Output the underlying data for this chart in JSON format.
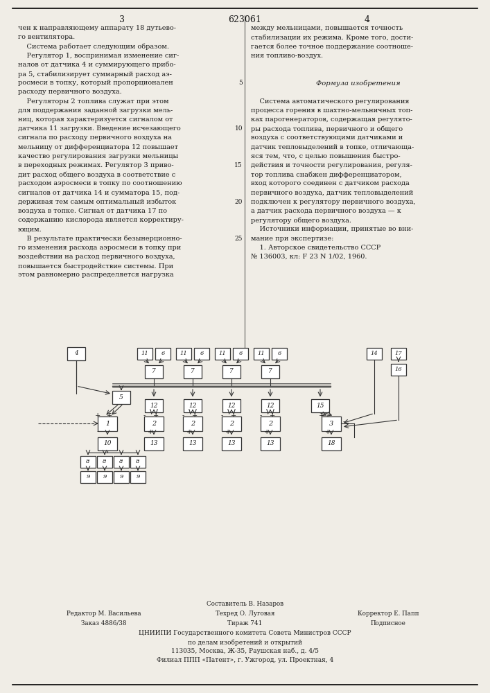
{
  "page_number_center": "623061",
  "page_number_left": "3",
  "page_number_right": "4",
  "bg_color": "#f0ede6",
  "text_color": "#1a1a1a",
  "left_column_text": [
    "чен к направляющему аппарату 18 дутьево-",
    "го вентилятора.",
    "    Система работает следующим образом.",
    "    Регулятор 1, воспринимая изменение сиг-",
    "налов от датчика 4 и суммирующего прибо-",
    "ра 5, стабилизирует суммарный расход аэ-",
    "росмеси в топку, который пропорционален",
    "расходу первичного воздуха.",
    "    Регуляторы 2 топлива служат при этом",
    "для поддержания заданной загрузки мель-",
    "ниц, которая характеризуется сигналом от",
    "датчика 11 загрузки. Введение исчезающего",
    "сигнала по расходу первичного воздуха на",
    "мельницу от дифференциатора 12 повышает",
    "качество регулирования загрузки мельницы",
    "в переходных режимах. Регулятор 3 приво-",
    "дит расход общего воздуха в соответствие с",
    "расходом аэросмеси в топку по соотношению",
    "сигналов от датчика 14 и сумматора 15, под-",
    "держивая тем самым оптимальный избыток",
    "воздуха в топке. Сигнал от датчика 17 по",
    "содержанию кислорода является корректиру-",
    "ющим.",
    "    В результате практически безынерционно-",
    "го изменения расхода аэросмеси в топку при",
    "воздействии на расход первичного воздуха,",
    "повышается быстродействие системы. При",
    "этом равномерно распределяется нагрузка"
  ],
  "right_column_text": [
    "между мельницами, повышается точность",
    "стабилизации их режима. Кроме того, дости-",
    "гается более точное поддержание соотноше-",
    "ния топливо-воздух.",
    "",
    "",
    "Формула изобретения",
    "",
    "    Система автоматического регулирования",
    "процесса горения в шахтно-мельничных топ-",
    "ках парогенераторов, содержащая регулято-",
    "ры расхода топлива, первичного и общего",
    "воздуха с соответствующими датчиками и",
    "датчик тепловыделений в топке, отличающа-",
    "яся тем, что, с целью повышения быстро-",
    "действия и точности регулирования, регуля-",
    "тор топлива снабжен дифференциатором,",
    "вход которого соединен с датчиком расхода",
    "первичного воздуха, датчик тепловыделений",
    "подключен к регулятору первичного воздуха,",
    "а датчик расхода первичного воздуха — к",
    "регулятору общего воздуха.",
    "    Источники информации, принятые во вни-",
    "мание при экспертизе:",
    "    1. Авторское свидетельство СССР",
    "№ 136003, кл: F 23 N 1/02, 1960."
  ]
}
